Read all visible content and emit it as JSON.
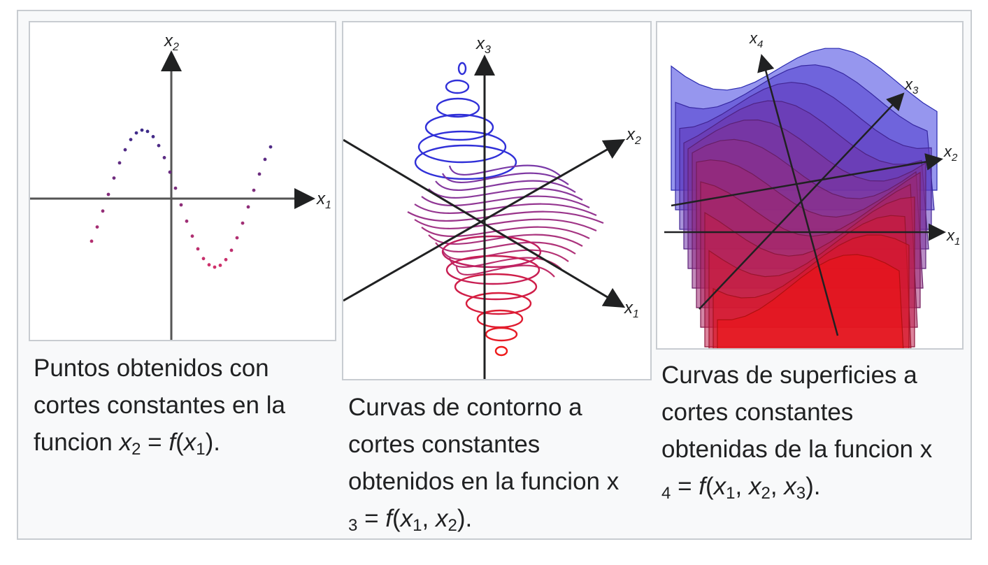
{
  "panels": [
    {
      "id": "points",
      "axes": {
        "x1": "x",
        "x1_sub": "1",
        "x2": "x",
        "x2_sub": "2"
      },
      "caption": {
        "line1": "Puntos obtenidos con",
        "line2": "cortes constantes en la",
        "line3_pre": "funcion ",
        "var_a": "x",
        "sub_a": "2",
        "eq": " = ",
        "f": "f",
        "open": "(",
        "var_b": "x",
        "sub_b": "1",
        "close": ")."
      }
    },
    {
      "id": "contours",
      "axes": {
        "x1": "x",
        "x1_sub": "1",
        "x2": "x",
        "x2_sub": "2",
        "x3": "x",
        "x3_sub": "3"
      },
      "caption": {
        "line1": "Curvas de contorno a",
        "line2": "cortes constantes",
        "line3": "obtenidos en la funcion x",
        "sub_c": "3",
        "eq": " = ",
        "f": "f",
        "open": "(",
        "var_a": "x",
        "sub_a": "1",
        "comma": ", ",
        "var_b": "x",
        "sub_b": "2",
        "close": ")."
      }
    },
    {
      "id": "surfaces",
      "axes": {
        "x1": "x",
        "x1_sub": "1",
        "x2": "x",
        "x2_sub": "2",
        "x3": "x",
        "x3_sub": "3",
        "x4": "x",
        "x4_sub": "4"
      },
      "caption": {
        "line1": "Curvas de superficies a",
        "line2": "cortes constantes",
        "line3": "obtenidas de la funcion x",
        "sub_d": "4",
        "eq": " = ",
        "f": "f",
        "open": "(",
        "var_a": "x",
        "sub_a": "1",
        "comma1": ", ",
        "var_b": "x",
        "sub_b": "2",
        "comma2": ", ",
        "var_c": "x",
        "sub_c": "3",
        "close": ")."
      }
    }
  ],
  "colors": {
    "blue": "#2a2ae0",
    "purple": "#8a2a9a",
    "red": "#e02020",
    "axis": "#202122"
  }
}
